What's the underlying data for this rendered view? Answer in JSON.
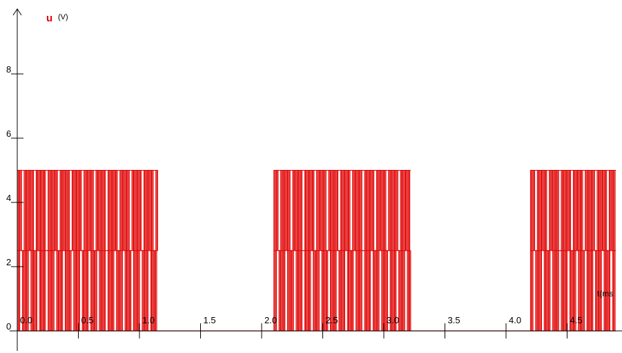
{
  "chart_data": {
    "type": "line",
    "ylabel": "u",
    "yunit": "(V)",
    "xlabel": "t(ms",
    "xlim": [
      -0.05,
      4.9
    ],
    "ylim": [
      0,
      9.6
    ],
    "xticks": [
      0.0,
      0.5,
      1.0,
      1.5,
      2.0,
      2.5,
      3.0,
      3.5,
      4.0,
      4.5
    ],
    "xtick_labels": [
      "0.0",
      "0.5",
      "1.0",
      "1.5",
      "2.0",
      "2.5",
      "3.0",
      "3.5",
      "4.0",
      "4.5"
    ],
    "yticks": [
      0,
      2,
      4,
      6,
      8
    ],
    "ytick_labels": [
      "0",
      "2",
      "4",
      "6",
      "8"
    ],
    "grid": false,
    "series": [
      {
        "color": "#e00000",
        "bursts": [
          {
            "start": 0.0,
            "end": 1.15
          },
          {
            "start": 2.1,
            "end": 3.22
          },
          {
            "start": 4.2,
            "end": 4.9
          }
        ],
        "levels": [
          0,
          2.5,
          5
        ],
        "oscillation_period_ms": 0.028,
        "off_value": 0
      }
    ]
  }
}
